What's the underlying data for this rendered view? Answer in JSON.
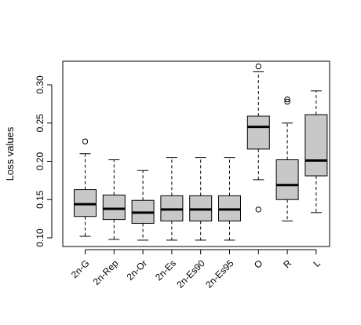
{
  "chart_data": {
    "type": "boxplot",
    "title": "",
    "xlabel": "",
    "ylabel": "Loss values",
    "ylim": [
      0.09,
      0.335
    ],
    "y_ticks": [
      0.1,
      0.15,
      0.2,
      0.25,
      0.3
    ],
    "y_tick_labels": [
      "0.10",
      "0.15",
      "0.20",
      "0.25",
      "0.30"
    ],
    "categories": [
      "2n-G",
      "2n-Rep",
      "2n-Or",
      "2n-Es",
      "2n-Es90",
      "2n-Es95",
      "O",
      "R",
      "L"
    ],
    "box_fill": "#c8c8c8",
    "stroke": "#000000",
    "grid": false,
    "series": [
      {
        "category": "2n-G",
        "whisker_low": 0.102,
        "q1": 0.128,
        "median": 0.144,
        "q3": 0.163,
        "whisker_high": 0.21,
        "outliers": [
          0.226
        ]
      },
      {
        "category": "2n-Rep",
        "whisker_low": 0.098,
        "q1": 0.124,
        "median": 0.138,
        "q3": 0.156,
        "whisker_high": 0.202,
        "outliers": []
      },
      {
        "category": "2n-Or",
        "whisker_low": 0.097,
        "q1": 0.119,
        "median": 0.133,
        "q3": 0.149,
        "whisker_high": 0.188,
        "outliers": []
      },
      {
        "category": "2n-Es",
        "whisker_low": 0.097,
        "q1": 0.122,
        "median": 0.137,
        "q3": 0.155,
        "whisker_high": 0.205,
        "outliers": []
      },
      {
        "category": "2n-Es90",
        "whisker_low": 0.097,
        "q1": 0.122,
        "median": 0.137,
        "q3": 0.155,
        "whisker_high": 0.205,
        "outliers": []
      },
      {
        "category": "2n-Es95",
        "whisker_low": 0.097,
        "q1": 0.122,
        "median": 0.137,
        "q3": 0.155,
        "whisker_high": 0.205,
        "outliers": []
      },
      {
        "category": "O",
        "whisker_low": 0.176,
        "q1": 0.216,
        "median": 0.245,
        "q3": 0.259,
        "whisker_high": 0.317,
        "outliers": [
          0.324,
          0.137
        ]
      },
      {
        "category": "R",
        "whisker_low": 0.122,
        "q1": 0.15,
        "median": 0.169,
        "q3": 0.202,
        "whisker_high": 0.25,
        "outliers": [
          0.278,
          0.281
        ]
      },
      {
        "category": "L",
        "whisker_low": 0.133,
        "q1": 0.181,
        "median": 0.201,
        "q3": 0.261,
        "whisker_high": 0.292,
        "outliers": []
      }
    ]
  }
}
